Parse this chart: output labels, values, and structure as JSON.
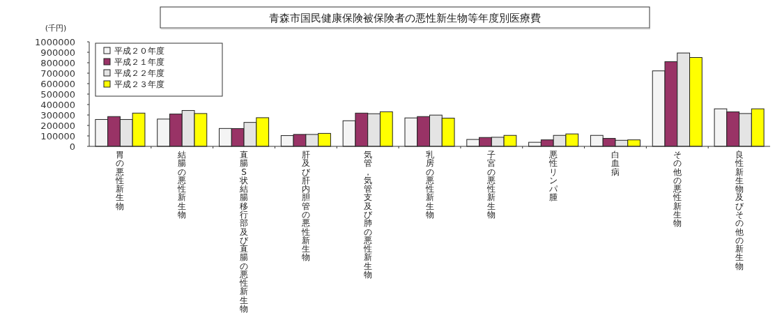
{
  "chart_data": {
    "type": "bar",
    "title": "青森市国民健康保険被保険者の悪性新生物等年度別医療費",
    "ylabel": "(千円)",
    "categories": [
      "胃の悪性新生物",
      "結腸の悪性新生物",
      "直腸S状結腸移行部及び直腸の悪性新生物",
      "肝及び肝内胆管の悪性新生物",
      "気管，気管支及び肺の悪性新生物",
      "乳房の悪性新生物",
      "子宮の悪性新生物",
      "悪性リンパ腫",
      "白血病",
      "その他の悪性新生物",
      "良性新生物及びその他の新生物"
    ],
    "series": [
      {
        "name": "平成２０年度",
        "color": "#f4f4f4",
        "values": [
          257000,
          261000,
          171000,
          103000,
          245000,
          272000,
          66000,
          39000,
          105000,
          722000,
          359000
        ]
      },
      {
        "name": "平成２１年度",
        "color": "#993366",
        "values": [
          285000,
          309000,
          170000,
          114000,
          318000,
          285000,
          85000,
          62000,
          76000,
          810000,
          330000
        ]
      },
      {
        "name": "平成２２年度",
        "color": "#e4e4e4",
        "values": [
          257000,
          343000,
          229000,
          114000,
          312000,
          299000,
          87000,
          105000,
          58000,
          893000,
          314000
        ]
      },
      {
        "name": "平成２３年度",
        "color": "#ffff00",
        "values": [
          318000,
          314000,
          274000,
          124000,
          331000,
          270000,
          105000,
          119000,
          62000,
          850000,
          359000
        ]
      }
    ],
    "ylim": [
      0,
      1000000
    ],
    "yticks": [
      0,
      100000,
      200000,
      300000,
      400000,
      500000,
      600000,
      700000,
      800000,
      900000,
      1000000
    ],
    "grid": false,
    "legend": "top left"
  }
}
